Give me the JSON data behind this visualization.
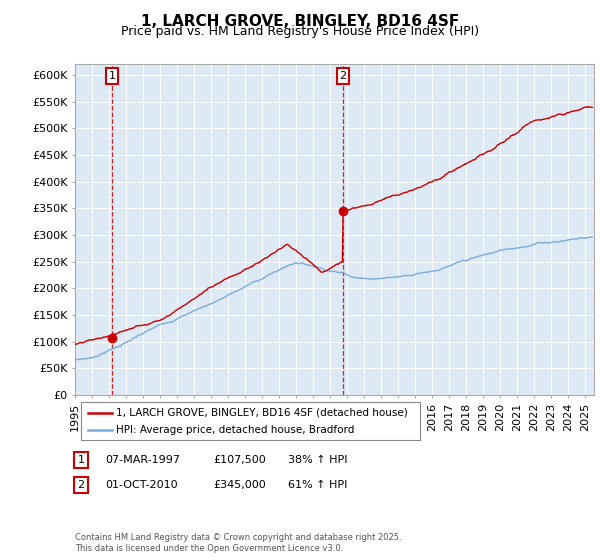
{
  "title": "1, LARCH GROVE, BINGLEY, BD16 4SF",
  "subtitle": "Price paid vs. HM Land Registry's House Price Index (HPI)",
  "ylim": [
    0,
    620000
  ],
  "yticks": [
    0,
    50000,
    100000,
    150000,
    200000,
    250000,
    300000,
    350000,
    400000,
    450000,
    500000,
    550000,
    600000
  ],
  "ytick_labels": [
    "£0",
    "£50K",
    "£100K",
    "£150K",
    "£200K",
    "£250K",
    "£300K",
    "£350K",
    "£400K",
    "£450K",
    "£500K",
    "£550K",
    "£600K"
  ],
  "xlim_start": 1995.0,
  "xlim_end": 2025.5,
  "sale1_x": 1997.17,
  "sale1_y": 107500,
  "sale1_label": "1",
  "sale2_x": 2010.75,
  "sale2_y": 345000,
  "sale2_label": "2",
  "red_line_color": "#cc0000",
  "blue_line_color": "#7aacdc",
  "marker_color": "#cc0000",
  "background_color": "#ddeaf5",
  "grid_color": "#ffffff",
  "legend_line1": "1, LARCH GROVE, BINGLEY, BD16 4SF (detached house)",
  "legend_line2": "HPI: Average price, detached house, Bradford",
  "footnote": "Contains HM Land Registry data © Crown copyright and database right 2025.\nThis data is licensed under the Open Government Licence v3.0.",
  "title_fontsize": 11,
  "subtitle_fontsize": 9,
  "tick_fontsize": 8
}
